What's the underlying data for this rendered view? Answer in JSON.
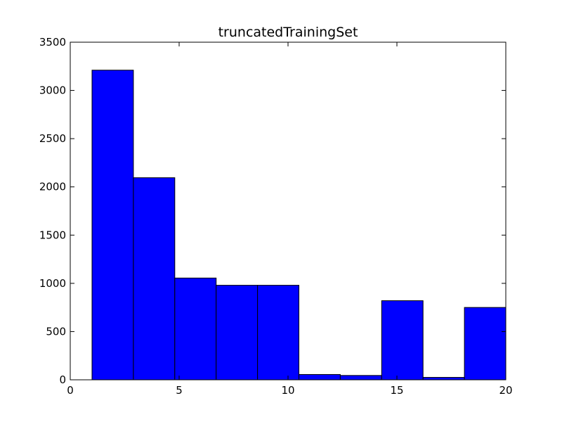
{
  "chart_data": {
    "type": "bar",
    "title": "truncatedTrainingSet",
    "xlabel": "",
    "ylabel": "",
    "xlim": [
      0,
      20
    ],
    "ylim": [
      0,
      3500
    ],
    "xticks": [
      0,
      5,
      10,
      15,
      20
    ],
    "yticks": [
      0,
      500,
      1000,
      1500,
      2000,
      2500,
      3000,
      3500
    ],
    "grid": false,
    "bar_color": "#0000ff",
    "bin_edges": [
      1,
      2.9,
      4.8,
      6.7,
      8.6,
      10.5,
      12.4,
      14.3,
      16.2,
      18.1,
      20
    ],
    "values": [
      3210,
      2095,
      1055,
      980,
      980,
      55,
      45,
      820,
      25,
      750
    ]
  }
}
